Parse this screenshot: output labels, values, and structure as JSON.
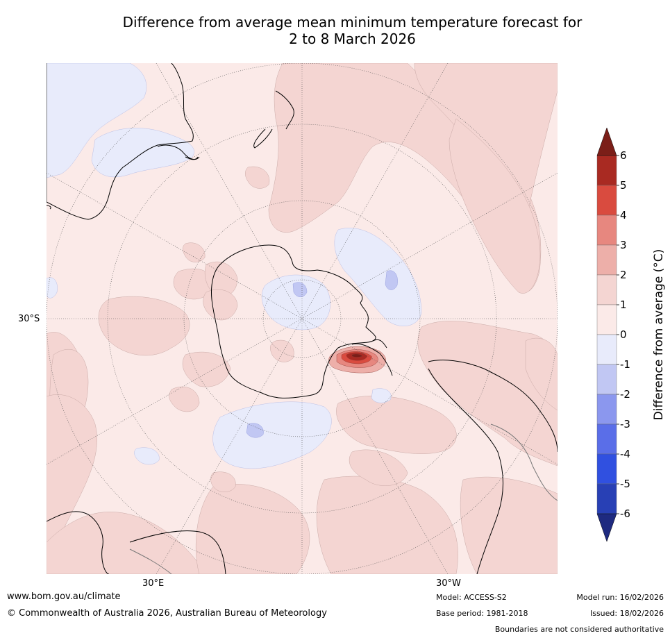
{
  "title": {
    "line1": "Difference from average mean minimum temperature forecast for",
    "line2": "2 to 8 March 2026"
  },
  "map": {
    "projection": "south-polar-stereographic",
    "graticule": {
      "lat_label": "30°S",
      "lon_labels": [
        "30°E",
        "30°W"
      ]
    },
    "features": [
      {
        "region": "Antarctica"
      },
      {
        "region": "Australia"
      },
      {
        "region": "New Zealand"
      },
      {
        "region": "South America"
      },
      {
        "region": "Southern Africa"
      },
      {
        "anomaly_max_near": "Antarctic Peninsula / Weddell Sea",
        "value_range_c": [
          5,
          6
        ]
      }
    ]
  },
  "colorbar": {
    "label": "Difference from average (°C)",
    "ticks": [
      "6",
      "5",
      "4",
      "3",
      "2",
      "1",
      "0",
      "-1",
      "-2",
      "-3",
      "-4",
      "-5",
      "-6"
    ],
    "bins": [
      {
        "range": "5 to 6",
        "color": "#a92a22"
      },
      {
        "range": "4 to 5",
        "color": "#d94b3f"
      },
      {
        "range": "3 to 4",
        "color": "#e7877f"
      },
      {
        "range": "2 to 3",
        "color": "#edafa9"
      },
      {
        "range": "1 to 2",
        "color": "#f4d5d2"
      },
      {
        "range": "0 to 1",
        "color": "#fbeae8"
      },
      {
        "range": "-1 to 0",
        "color": "#e8ebfb"
      },
      {
        "range": "-2 to -1",
        "color": "#c1c7f3"
      },
      {
        "range": "-3 to -2",
        "color": "#8b97ee"
      },
      {
        "range": "-4 to -3",
        "color": "#5a6ee8"
      },
      {
        "range": "-5 to -4",
        "color": "#3050e0"
      },
      {
        "range": "-6 to -5",
        "color": "#2840b5"
      }
    ],
    "over_color": "#7b1e18",
    "under_color": "#1e2a80"
  },
  "footer": {
    "website": "www.bom.gov.au/climate",
    "copyright": "© Commonwealth of Australia 2026, Australian Bureau of Meteorology",
    "model": "Model: ACCESS-S2",
    "base_period": "Base period: 1981-2018",
    "model_run": "Model run: 16/02/2026",
    "issued": "Issued: 18/02/2026",
    "disclaimer": "Boundaries are not considered authoritative"
  }
}
